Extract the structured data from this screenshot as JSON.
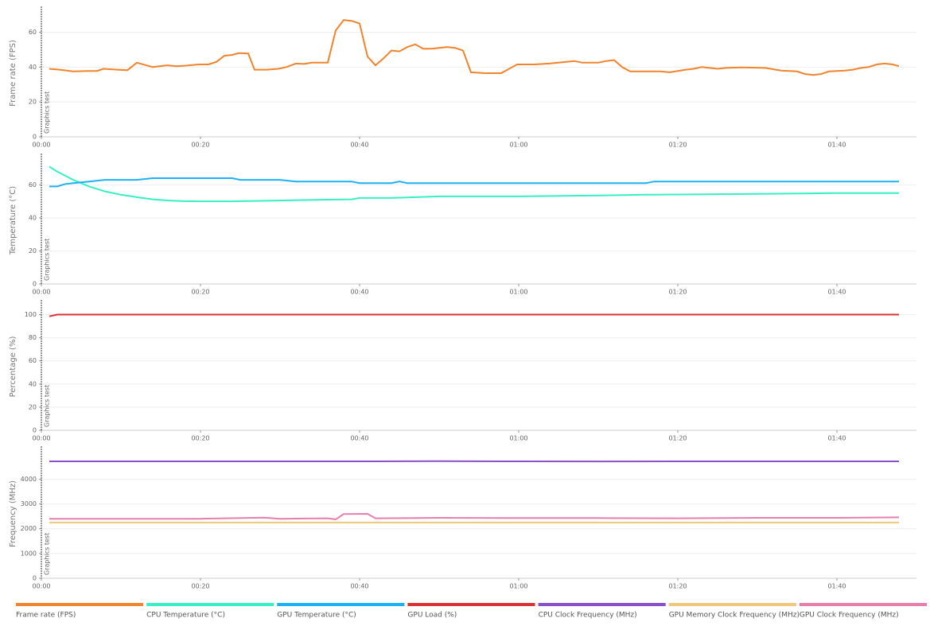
{
  "chart_data": [
    {
      "type": "line",
      "ylabel": "Frame rate (FPS)",
      "annotation": "Graphics test",
      "xlim": [
        0,
        110
      ],
      "ylim": [
        0,
        73
      ],
      "xticks": [
        {
          "value": 0,
          "label": "00:00"
        },
        {
          "value": 20,
          "label": "00:20"
        },
        {
          "value": 40,
          "label": "00:40"
        },
        {
          "value": 60,
          "label": "01:00"
        },
        {
          "value": 80,
          "label": "01:20"
        },
        {
          "value": 100,
          "label": "01:40"
        }
      ],
      "yticks": [
        0,
        20,
        40,
        60
      ],
      "grid": true,
      "x": [
        1,
        2.3,
        4,
        5.8,
        7,
        7.8,
        9.6,
        10.8,
        12,
        14,
        15.8,
        17,
        18,
        19.8,
        21,
        22,
        23,
        24,
        24.8,
        26,
        26.8,
        28.3,
        29.8,
        30.8,
        32,
        33,
        34,
        36,
        37,
        38,
        39,
        40,
        41,
        42,
        43,
        44,
        45,
        46,
        47,
        48,
        49,
        50,
        51,
        52,
        53,
        54,
        55.8,
        57.8,
        59.8,
        62,
        63.8,
        65,
        66,
        67,
        68,
        70,
        71,
        72,
        73,
        74,
        76,
        77.8,
        79,
        81,
        82,
        83,
        84,
        85,
        86,
        88,
        91,
        93,
        95,
        96,
        97,
        98,
        99,
        101,
        102,
        103,
        104,
        105,
        106,
        107,
        107.8
      ],
      "series": [
        {
          "name": "Frame rate (FPS)",
          "color": "#f0832c",
          "values": [
            39,
            38.5,
            37.5,
            37.8,
            37.8,
            39,
            38.5,
            38.2,
            42.5,
            40,
            41,
            40.5,
            40.8,
            41.5,
            41.5,
            43,
            46.5,
            47,
            48,
            47.8,
            38.5,
            38.5,
            39,
            40,
            42,
            41.8,
            42.5,
            42.5,
            61,
            67,
            66.5,
            65,
            46,
            41,
            45,
            49.5,
            49,
            51.5,
            53,
            50.5,
            50.5,
            51,
            51.5,
            51,
            49.5,
            37,
            36.5,
            36.5,
            41.5,
            41.5,
            42,
            42.5,
            43,
            43.5,
            42.5,
            42.5,
            43.5,
            44,
            40,
            37.5,
            37.5,
            37.5,
            37,
            38.5,
            39,
            40,
            39.5,
            39,
            39.5,
            39.8,
            39.5,
            38,
            37.5,
            36,
            35.5,
            36,
            37.5,
            38,
            38.5,
            39.5,
            40,
            41.5,
            42,
            41.5,
            40.5
          ]
        }
      ]
    },
    {
      "type": "line",
      "ylabel": "Temperature (°C)",
      "annotation": "Graphics test",
      "xlim": [
        0,
        110
      ],
      "ylim": [
        0,
        77
      ],
      "xticks": [
        {
          "value": 0,
          "label": "00:00"
        },
        {
          "value": 20,
          "label": "00:20"
        },
        {
          "value": 40,
          "label": "00:40"
        },
        {
          "value": 60,
          "label": "01:00"
        },
        {
          "value": 80,
          "label": "01:20"
        },
        {
          "value": 100,
          "label": "01:40"
        }
      ],
      "yticks": [
        0,
        20,
        40,
        60
      ],
      "grid": true,
      "x": [
        1,
        2,
        3,
        4,
        6,
        8,
        10,
        12,
        14,
        16,
        18,
        20,
        24,
        25,
        30,
        32,
        36,
        39,
        40,
        44,
        45,
        46,
        50,
        60,
        70,
        76,
        77,
        90,
        100,
        107.8
      ],
      "series": [
        {
          "name": "CPU Temperature (°C)",
          "color": "#35f0c4",
          "values": [
            71,
            68,
            65.5,
            63,
            59,
            56,
            54,
            52.5,
            51.2,
            50.5,
            50.1,
            50,
            50,
            50.1,
            50.5,
            50.7,
            51,
            51.2,
            52,
            52,
            52.2,
            52.3,
            53,
            53,
            53.5,
            54,
            54,
            54.5,
            55,
            55
          ]
        },
        {
          "name": "GPU Temperature (°C)",
          "color": "#1cb1f5",
          "values": [
            59,
            59,
            60.5,
            61,
            62,
            63,
            63,
            63,
            64,
            64,
            64,
            64,
            64,
            63,
            63,
            62,
            62,
            62,
            61,
            61,
            62,
            61,
            61,
            61,
            61,
            61,
            62,
            62,
            62,
            62
          ]
        }
      ]
    },
    {
      "type": "line",
      "ylabel": "Percentage (%)",
      "annotation": "Graphics test",
      "xlim": [
        0,
        110
      ],
      "ylim": [
        0,
        110
      ],
      "xticks": [
        {
          "value": 0,
          "label": "00:00"
        },
        {
          "value": 20,
          "label": "00:20"
        },
        {
          "value": 40,
          "label": "00:40"
        },
        {
          "value": 60,
          "label": "01:00"
        },
        {
          "value": 80,
          "label": "01:20"
        },
        {
          "value": 100,
          "label": "01:40"
        }
      ],
      "yticks": [
        0,
        20,
        40,
        60,
        80,
        100
      ],
      "grid": true,
      "x": [
        1,
        2,
        107.8
      ],
      "series": [
        {
          "name": "GPU Load (%)",
          "color": "#d93232",
          "values": [
            98.5,
            100,
            100
          ]
        }
      ]
    },
    {
      "type": "line",
      "ylabel": "Frequency (MHz)",
      "annotation": "Graphics test",
      "xlim": [
        0,
        110
      ],
      "ylim": [
        0,
        5200
      ],
      "xticks": [
        {
          "value": 0,
          "label": "00:00"
        },
        {
          "value": 20,
          "label": "00:20"
        },
        {
          "value": 40,
          "label": "00:40"
        },
        {
          "value": 60,
          "label": "01:00"
        },
        {
          "value": 80,
          "label": "01:20"
        },
        {
          "value": 100,
          "label": "01:40"
        }
      ],
      "yticks": [
        0,
        1000,
        2000,
        3000,
        4000
      ],
      "grid": true,
      "x": [
        1,
        10,
        20,
        28,
        30,
        36,
        37,
        38,
        41,
        42,
        50,
        60,
        70,
        80,
        90,
        100,
        107.8
      ],
      "series": [
        {
          "name": "CPU Clock Frequency (MHz)",
          "color": "#8b50c8",
          "values": [
            4720,
            4720,
            4720,
            4720,
            4720,
            4720,
            4720,
            4720,
            4720,
            4720,
            4725,
            4720,
            4715,
            4720,
            4720,
            4720,
            4720
          ]
        },
        {
          "name": "GPU Memory Clock Frequency (MHz)",
          "color": "#efc87a",
          "values": [
            2250,
            2250,
            2250,
            2250,
            2250,
            2250,
            2250,
            2250,
            2250,
            2250,
            2250,
            2250,
            2250,
            2250,
            2250,
            2250,
            2250
          ]
        },
        {
          "name": "GPU Clock Frequency (MHz)",
          "color": "#e67fae",
          "values": [
            2400,
            2400,
            2400,
            2450,
            2400,
            2420,
            2380,
            2590,
            2600,
            2420,
            2440,
            2430,
            2430,
            2420,
            2440,
            2440,
            2460
          ]
        }
      ]
    }
  ]
}
